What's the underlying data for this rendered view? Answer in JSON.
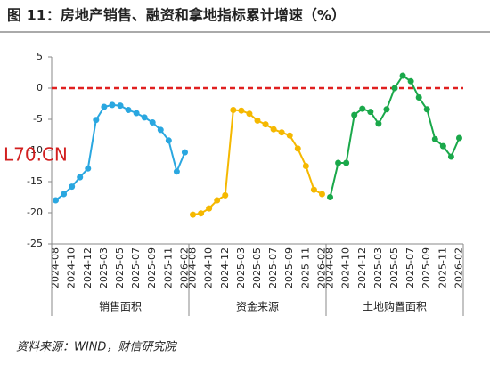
{
  "title": "图 11：房地产销售、融资和拿地指标累计增速（%）",
  "source": "资料来源：WIND，财信研究院",
  "watermark": "L70.CN",
  "chart_data": {
    "type": "line",
    "categories": [
      "2024-08",
      null,
      "2024-10",
      null,
      "2024-12",
      null,
      "2025-03",
      null,
      "2025-05",
      null,
      "2025-07",
      null,
      "2025-09",
      null,
      "2025-11",
      null,
      "2026-02"
    ],
    "ylim": [
      -25,
      5
    ],
    "yticks": [
      -25,
      -20,
      -15,
      -10,
      -5,
      0,
      5
    ],
    "zero_line": {
      "value": 0,
      "color": "#e02020"
    },
    "series": [
      {
        "name": "销售面积",
        "color": "#2aa7e0",
        "values": [
          -18,
          -17,
          -15.8,
          -14.3,
          -12.9,
          -5.1,
          -3,
          -2.7,
          -2.8,
          -3.5,
          -4,
          -4.7,
          -5.5,
          -6.7,
          -8.4,
          -13.4,
          -10.3
        ]
      },
      {
        "name": "资金来源",
        "color": "#f5b800",
        "values": [
          -20.3,
          -20.1,
          -19.3,
          -18,
          -17.2,
          -3.5,
          -3.6,
          -4.1,
          -5.2,
          -5.8,
          -6.6,
          -7.1,
          -7.6,
          -9.7,
          -12.5,
          -16.3,
          -17
        ]
      },
      {
        "name": "土地购置面积",
        "color": "#1aa84a",
        "values": [
          -17.5,
          -12,
          -12,
          -4.3,
          -3.3,
          -3.8,
          -5.7,
          -3.4,
          0,
          2,
          1.1,
          -1.5,
          -3.4,
          -8.2,
          -9.3,
          -11,
          -8
        ]
      }
    ]
  }
}
